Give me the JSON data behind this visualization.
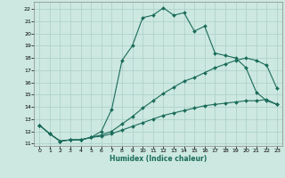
{
  "xlabel": "Humidex (Indice chaleur)",
  "background_color": "#cce8e0",
  "grid_color": "#aacfc8",
  "line_color": "#1a6b5a",
  "xlim": [
    -0.5,
    23.5
  ],
  "ylim": [
    10.8,
    22.6
  ],
  "yticks": [
    11,
    12,
    13,
    14,
    15,
    16,
    17,
    18,
    19,
    20,
    21,
    22
  ],
  "xticks": [
    0,
    1,
    2,
    3,
    4,
    5,
    6,
    7,
    8,
    9,
    10,
    11,
    12,
    13,
    14,
    15,
    16,
    17,
    18,
    19,
    20,
    21,
    22,
    23
  ],
  "series": [
    {
      "x": [
        0,
        1,
        2,
        3,
        4,
        5,
        6,
        7,
        8,
        9,
        10,
        11,
        12,
        13,
        14,
        15,
        16,
        17,
        18,
        19,
        20,
        21,
        22,
        23
      ],
      "y": [
        12.5,
        11.8,
        11.2,
        11.3,
        11.3,
        11.5,
        12.0,
        13.8,
        17.8,
        19.0,
        21.3,
        21.5,
        22.1,
        21.5,
        21.7,
        20.2,
        20.6,
        18.4,
        18.2,
        18.0,
        17.2,
        15.2,
        14.5,
        14.2
      ]
    },
    {
      "x": [
        0,
        1,
        2,
        3,
        4,
        5,
        6,
        7,
        8,
        9,
        10,
        11,
        12,
        13,
        14,
        15,
        16,
        17,
        18,
        19,
        20,
        21,
        22,
        23
      ],
      "y": [
        12.5,
        11.8,
        11.2,
        11.3,
        11.3,
        11.5,
        11.6,
        11.8,
        12.1,
        12.4,
        12.7,
        13.0,
        13.3,
        13.5,
        13.7,
        13.9,
        14.1,
        14.2,
        14.3,
        14.4,
        14.5,
        14.5,
        14.6,
        14.2
      ]
    },
    {
      "x": [
        0,
        1,
        2,
        3,
        4,
        5,
        6,
        7,
        8,
        9,
        10,
        11,
        12,
        13,
        14,
        15,
        16,
        17,
        18,
        19,
        20,
        21,
        22,
        23
      ],
      "y": [
        12.5,
        11.8,
        11.2,
        11.3,
        11.3,
        11.5,
        11.7,
        12.0,
        12.6,
        13.2,
        13.9,
        14.5,
        15.1,
        15.6,
        16.1,
        16.4,
        16.8,
        17.2,
        17.5,
        17.8,
        18.0,
        17.8,
        17.4,
        15.5
      ]
    }
  ]
}
